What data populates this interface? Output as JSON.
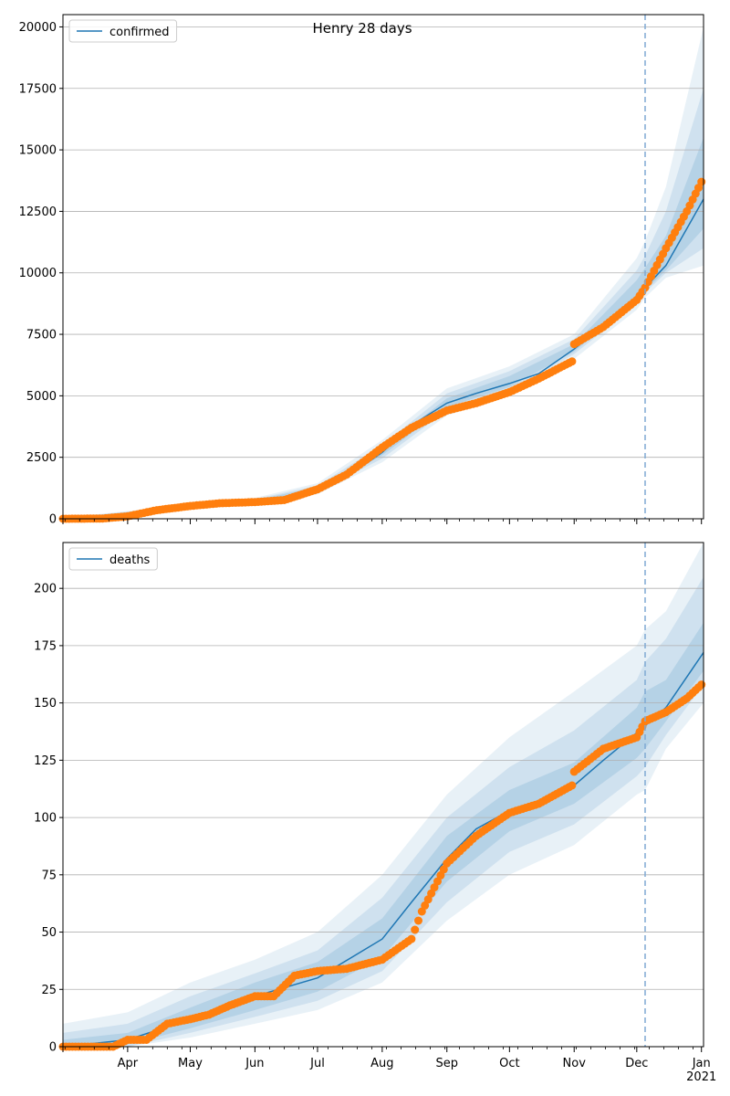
{
  "figure": {
    "title": "Henry 28 days"
  },
  "chart_data": [
    {
      "type": "line",
      "name": "confirmed-panel",
      "legend": {
        "label": "confirmed",
        "placement": "top-left"
      },
      "x_ticks": [
        {
          "date": "2020-04-01",
          "label": "Apr"
        },
        {
          "date": "2020-05-01",
          "label": "May"
        },
        {
          "date": "2020-06-01",
          "label": "Jun"
        },
        {
          "date": "2020-07-01",
          "label": "Jul"
        },
        {
          "date": "2020-08-01",
          "label": "Aug"
        },
        {
          "date": "2020-09-01",
          "label": "Sep"
        },
        {
          "date": "2020-10-01",
          "label": "Oct"
        },
        {
          "date": "2020-11-01",
          "label": "Nov"
        },
        {
          "date": "2020-12-01",
          "label": "Dec"
        },
        {
          "date": "2021-01-01",
          "label": "Jan",
          "sublabel": "2021"
        }
      ],
      "xlim": [
        "2020-03-01",
        "2021-01-02"
      ],
      "ylim": [
        0,
        20500
      ],
      "y_ticks": [
        0,
        2500,
        5000,
        7500,
        10000,
        12500,
        15000,
        17500,
        20000
      ],
      "grid": "horizontal",
      "vline_date": "2020-12-05",
      "colors": {
        "model": "#1f77b4",
        "observed": "#ff7f0e",
        "band": "#1f77b4",
        "vline": "#7fa9d3"
      },
      "model_line": {
        "x": [
          "2020-03-01",
          "2020-04-01",
          "2020-05-01",
          "2020-06-01",
          "2020-06-15",
          "2020-07-01",
          "2020-07-15",
          "2020-08-01",
          "2020-08-15",
          "2020-09-01",
          "2020-09-15",
          "2020-10-01",
          "2020-10-15",
          "2020-11-01",
          "2020-11-15",
          "2020-12-01",
          "2020-12-05",
          "2020-12-15",
          "2021-01-02"
        ],
        "y": [
          0,
          80,
          550,
          720,
          820,
          1200,
          1700,
          2700,
          3800,
          4700,
          5100,
          5500,
          5900,
          6900,
          7900,
          9000,
          9400,
          10300,
          13000
        ]
      },
      "bands": [
        {
          "x": [
            "2020-03-01",
            "2020-06-01",
            "2020-07-01",
            "2020-08-01",
            "2020-09-01",
            "2020-10-01",
            "2020-11-01",
            "2020-12-01",
            "2020-12-05",
            "2020-12-15",
            "2021-01-02"
          ],
          "lower": [
            0,
            600,
            1000,
            2300,
            4200,
            5000,
            6500,
            8500,
            9000,
            9800,
            10300
          ],
          "upper": [
            40,
            850,
            1450,
            3200,
            5300,
            6200,
            7500,
            10600,
            11300,
            13500,
            20000
          ]
        },
        {
          "x": [
            "2020-03-01",
            "2020-06-01",
            "2020-07-01",
            "2020-08-01",
            "2020-09-01",
            "2020-10-01",
            "2020-11-01",
            "2020-12-01",
            "2020-12-05",
            "2020-12-15",
            "2021-01-02"
          ],
          "lower": [
            0,
            650,
            1080,
            2450,
            4400,
            5200,
            6700,
            8700,
            9200,
            10000,
            11000
          ],
          "upper": [
            30,
            800,
            1350,
            3000,
            5100,
            6000,
            7300,
            10100,
            10700,
            12500,
            17500
          ]
        },
        {
          "x": [
            "2020-03-01",
            "2020-06-01",
            "2020-07-01",
            "2020-08-01",
            "2020-09-01",
            "2020-10-01",
            "2020-11-01",
            "2020-12-01",
            "2020-12-05",
            "2020-12-15",
            "2021-01-02"
          ],
          "lower": [
            0,
            690,
            1140,
            2580,
            4550,
            5350,
            6800,
            8850,
            9300,
            10100,
            11800
          ],
          "upper": [
            20,
            760,
            1280,
            2850,
            4900,
            5800,
            7100,
            9700,
            10200,
            11500,
            15500
          ]
        }
      ],
      "observed": {
        "x": [
          "2020-03-01",
          "2020-03-20",
          "2020-04-01",
          "2020-04-15",
          "2020-05-01",
          "2020-05-15",
          "2020-06-01",
          "2020-06-15",
          "2020-07-01",
          "2020-07-15",
          "2020-08-01",
          "2020-08-15",
          "2020-09-01",
          "2020-09-15",
          "2020-10-01",
          "2020-10-15",
          "2020-10-31",
          "2020-11-01",
          "2020-11-15",
          "2020-12-01",
          "2020-12-05",
          "2020-12-15",
          "2020-12-25",
          "2021-01-01"
        ],
        "y": [
          0,
          10,
          100,
          350,
          520,
          630,
          680,
          760,
          1200,
          1800,
          2900,
          3700,
          4400,
          4700,
          5150,
          5700,
          6400,
          7100,
          7800,
          8900,
          9400,
          11000,
          12500,
          13700
        ]
      }
    },
    {
      "type": "line",
      "name": "deaths-panel",
      "legend": {
        "label": "deaths",
        "placement": "top-left"
      },
      "x_ticks": [
        {
          "date": "2020-04-01",
          "label": "Apr"
        },
        {
          "date": "2020-05-01",
          "label": "May"
        },
        {
          "date": "2020-06-01",
          "label": "Jun"
        },
        {
          "date": "2020-07-01",
          "label": "Jul"
        },
        {
          "date": "2020-08-01",
          "label": "Aug"
        },
        {
          "date": "2020-09-01",
          "label": "Sep"
        },
        {
          "date": "2020-10-01",
          "label": "Oct"
        },
        {
          "date": "2020-11-01",
          "label": "Nov"
        },
        {
          "date": "2020-12-01",
          "label": "Dec"
        },
        {
          "date": "2021-01-01",
          "label": "Jan",
          "sublabel": "2021"
        }
      ],
      "xlim": [
        "2020-03-01",
        "2021-01-02"
      ],
      "ylim": [
        0,
        220
      ],
      "y_ticks": [
        0,
        25,
        50,
        75,
        100,
        125,
        150,
        175,
        200
      ],
      "grid": "horizontal",
      "vline_date": "2020-12-05",
      "colors": {
        "model": "#1f77b4",
        "observed": "#ff7f0e",
        "band": "#1f77b4",
        "vline": "#7fa9d3"
      },
      "model_line": {
        "x": [
          "2020-03-01",
          "2020-04-01",
          "2020-05-01",
          "2020-06-01",
          "2020-07-01",
          "2020-08-01",
          "2020-08-15",
          "2020-09-01",
          "2020-09-15",
          "2020-10-01",
          "2020-10-15",
          "2020-11-01",
          "2020-11-15",
          "2020-12-01",
          "2020-12-05",
          "2020-12-15",
          "2021-01-02"
        ],
        "y": [
          0,
          3,
          12,
          22,
          30,
          47,
          63,
          82,
          95,
          103,
          107,
          114,
          125,
          137,
          140,
          148,
          172
        ]
      },
      "bands": [
        {
          "x": [
            "2020-03-01",
            "2020-04-01",
            "2020-05-01",
            "2020-06-01",
            "2020-07-01",
            "2020-08-01",
            "2020-09-01",
            "2020-10-01",
            "2020-11-01",
            "2020-12-01",
            "2020-12-05",
            "2020-12-15",
            "2021-01-02"
          ],
          "lower": [
            0,
            0,
            4,
            10,
            16,
            28,
            55,
            75,
            88,
            110,
            112,
            130,
            150
          ],
          "upper": [
            10,
            15,
            28,
            38,
            50,
            75,
            110,
            135,
            155,
            175,
            182,
            190,
            220
          ]
        },
        {
          "x": [
            "2020-03-01",
            "2020-04-01",
            "2020-05-01",
            "2020-06-01",
            "2020-07-01",
            "2020-08-01",
            "2020-09-01",
            "2020-10-01",
            "2020-11-01",
            "2020-12-01",
            "2020-12-05",
            "2020-12-15",
            "2021-01-02"
          ],
          "lower": [
            0,
            0,
            6,
            13,
            20,
            33,
            63,
            85,
            97,
            118,
            122,
            136,
            158
          ],
          "upper": [
            6,
            10,
            22,
            32,
            42,
            65,
            100,
            122,
            138,
            160,
            168,
            178,
            205
          ]
        },
        {
          "x": [
            "2020-03-01",
            "2020-04-01",
            "2020-05-01",
            "2020-06-01",
            "2020-07-01",
            "2020-08-01",
            "2020-09-01",
            "2020-10-01",
            "2020-11-01",
            "2020-12-01",
            "2020-12-05",
            "2020-12-15",
            "2021-01-02"
          ],
          "lower": [
            0,
            1,
            8,
            16,
            24,
            39,
            72,
            94,
            106,
            126,
            130,
            142,
            164
          ],
          "upper": [
            3,
            6,
            17,
            28,
            37,
            56,
            92,
            112,
            124,
            148,
            155,
            160,
            185
          ]
        }
      ],
      "observed": {
        "x": [
          "2020-03-01",
          "2020-03-25",
          "2020-04-01",
          "2020-04-10",
          "2020-04-20",
          "2020-05-01",
          "2020-05-10",
          "2020-05-20",
          "2020-06-01",
          "2020-06-10",
          "2020-06-20",
          "2020-07-01",
          "2020-07-15",
          "2020-08-01",
          "2020-08-15",
          "2020-08-20",
          "2020-09-01",
          "2020-09-15",
          "2020-10-01",
          "2020-10-15",
          "2020-10-31",
          "2020-11-01",
          "2020-11-15",
          "2020-12-01",
          "2020-12-05",
          "2020-12-15",
          "2020-12-25",
          "2021-01-01"
        ],
        "y": [
          0,
          0,
          3,
          3,
          10,
          12,
          14,
          18,
          22,
          22,
          31,
          33,
          34,
          38,
          47,
          59,
          80,
          92,
          102,
          106,
          114,
          120,
          130,
          135,
          142,
          146,
          152,
          158
        ]
      }
    }
  ]
}
